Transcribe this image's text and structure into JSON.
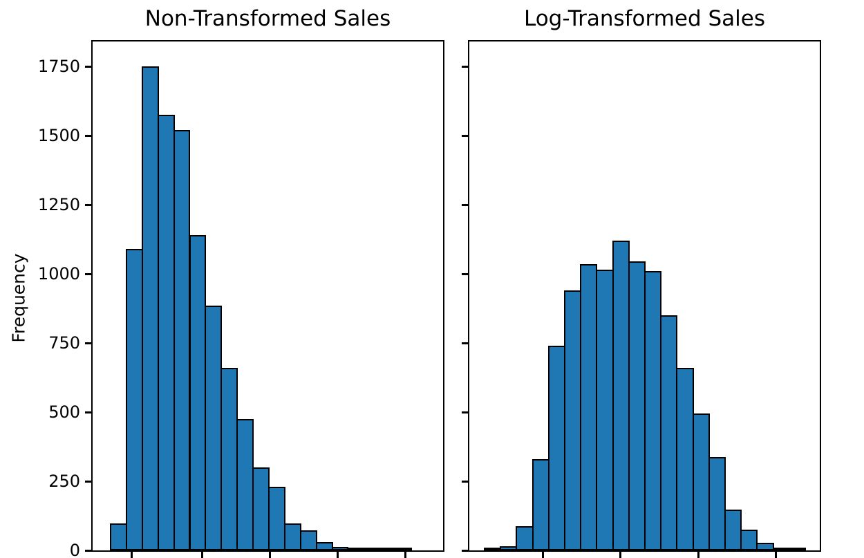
{
  "figure": {
    "background_color": "#ffffff",
    "text_color": "#000000"
  },
  "chart_data": [
    {
      "type": "bar",
      "subtype": "histogram",
      "title": "Non-Transformed Sales",
      "ylabel": "Frequency",
      "xlabel": "",
      "legend": null,
      "grid": false,
      "ylim": [
        0,
        1840
      ],
      "yticks": [
        0,
        250,
        500,
        750,
        1000,
        1250,
        1500,
        1750
      ],
      "ytick_labels": [
        "0",
        "250",
        "500",
        "750",
        "1000",
        "1250",
        "1500",
        "1750"
      ],
      "ytick_labels_visible": true,
      "xtick_labels_visible": false,
      "bar_color": "#1f77b4",
      "edge_color": "#000000",
      "n_bins": 20,
      "values": [
        98,
        1090,
        1750,
        1575,
        1520,
        1140,
        885,
        660,
        475,
        300,
        230,
        97,
        72,
        30,
        12,
        8,
        3,
        1,
        5,
        0
      ]
    },
    {
      "type": "bar",
      "subtype": "histogram",
      "title": "Log-Transformed Sales",
      "ylabel": "",
      "xlabel": "",
      "legend": null,
      "grid": false,
      "ylim": [
        0,
        1840
      ],
      "yticks": [
        0,
        250,
        500,
        750,
        1000,
        1250,
        1500,
        1750
      ],
      "ytick_labels_visible": false,
      "xtick_labels_visible": false,
      "bar_color": "#1f77b4",
      "edge_color": "#000000",
      "n_bins": 20,
      "values": [
        4,
        14,
        87,
        330,
        740,
        940,
        1035,
        1015,
        1120,
        1045,
        1010,
        850,
        660,
        495,
        338,
        148,
        75,
        28,
        8,
        2
      ]
    }
  ]
}
